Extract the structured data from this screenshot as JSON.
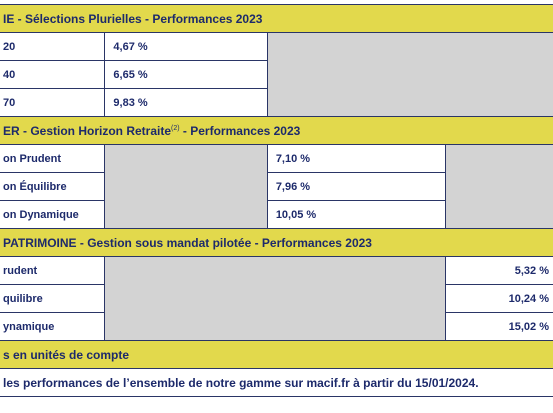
{
  "section1": {
    "header": "IE - Sélections Plurielles - Performances 2023",
    "rows": [
      {
        "label": "20",
        "value": "4,67 %"
      },
      {
        "label": "40",
        "value": "6,65 %"
      },
      {
        "label": "70",
        "value": "9,83 %"
      }
    ]
  },
  "section2": {
    "header_pre": "ER - Gestion Horizon Retraite",
    "header_sup": "(2)",
    "header_post": " - Performances 2023",
    "rows": [
      {
        "label": "on Prudent",
        "value": "7,10 %"
      },
      {
        "label": "on Équilibre",
        "value": "7,96 %"
      },
      {
        "label": "on Dynamique",
        "value": "10,05 %"
      }
    ]
  },
  "section3": {
    "header": "PATRIMOINE - Gestion sous mandat pilotée - Performances 2023",
    "rows": [
      {
        "label": "rudent",
        "value": "5,32 %"
      },
      {
        "label": "quilibre",
        "value": "10,24 %"
      },
      {
        "label": "ynamique",
        "value": "15,02 %"
      }
    ]
  },
  "note": "s en unités de compte",
  "footer": "les performances de l’ensemble de notre gamme sur macif.fr à partir du 15/01/2024.",
  "colors": {
    "header_bg": "#e2d94c",
    "empty_cell_bg": "#d3d3d3",
    "text": "#1d2a6b",
    "border": "#2a3566"
  }
}
